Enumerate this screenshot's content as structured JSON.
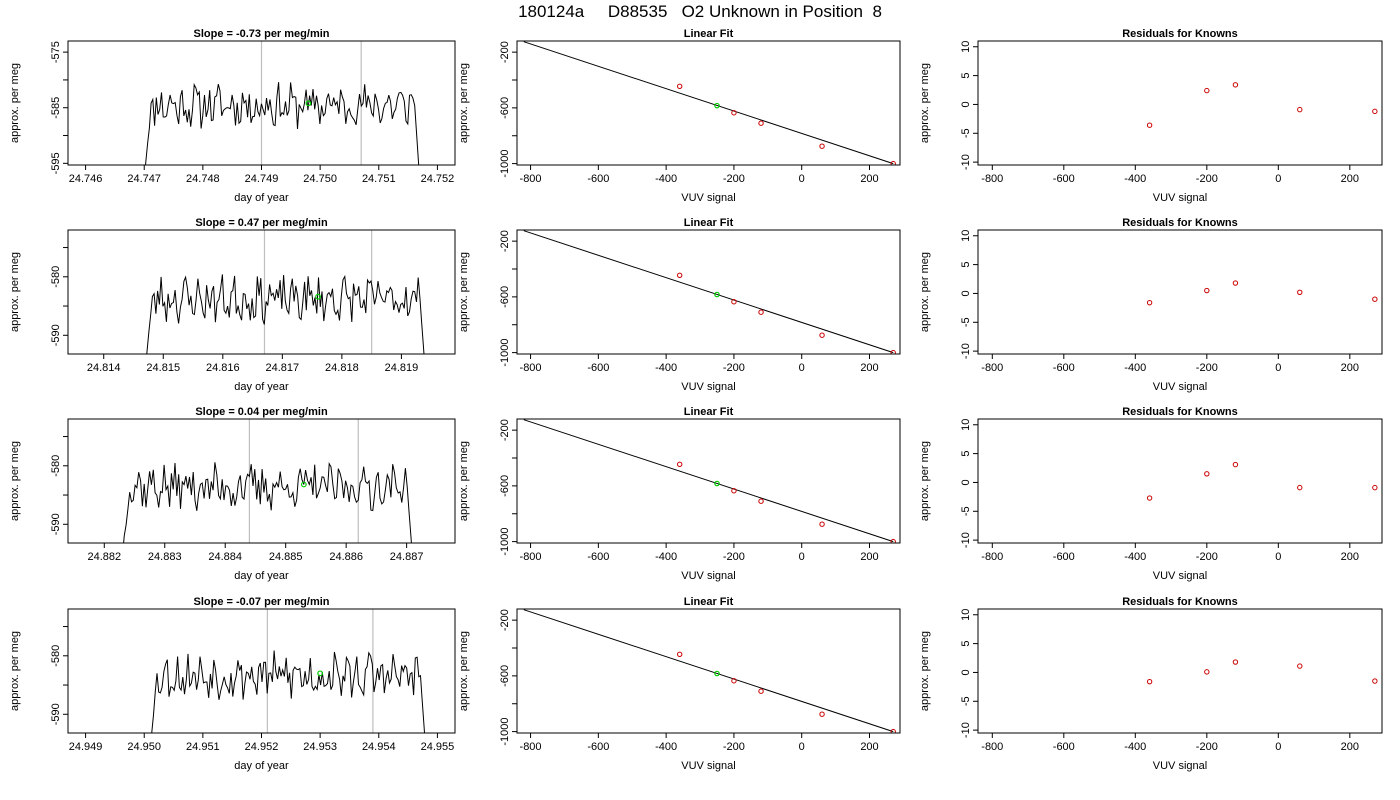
{
  "header": {
    "title": "180124a     D88535   O2 Unknown in Position  8"
  },
  "colors": {
    "trace": "#000000",
    "marker_vline": "#bebebe",
    "highlight": "#00cc00",
    "residual_points": "#cc0000",
    "axes": "#000000"
  },
  "chart_data": [
    {
      "type": "line",
      "title": "Slope =  -0.73  per meg/min",
      "xlabel": "day of year",
      "ylabel": "approx. per meg",
      "xlim": [
        24.7457,
        24.7523
      ],
      "ylim": [
        -595.3,
        -573.0
      ],
      "xticks": [
        24.746,
        24.747,
        24.748,
        24.749,
        24.75,
        24.751,
        24.752
      ],
      "xtick_labels": [
        "24.746",
        "24.747",
        "24.748",
        "24.749",
        "24.750",
        "24.751",
        "24.752"
      ],
      "yticks": [
        -575,
        -585,
        -595
      ],
      "ytick_labels": [
        "-575",
        "-585",
        "-595"
      ],
      "yminor": [
        -580,
        -590
      ],
      "x_start": 24.747,
      "x_end": 24.7517,
      "base_level": -584.6,
      "vlines": [
        24.749,
        24.7507
      ],
      "highlight": {
        "x": 24.7498,
        "y": -584.2
      },
      "seed": 11
    },
    {
      "type": "scatter",
      "title": "Linear Fit",
      "xlabel": "VUV signal",
      "ylabel": "approx. per meg",
      "xlim": [
        -840,
        290
      ],
      "ylim": [
        -1010,
        -120
      ],
      "xticks": [
        -800,
        -600,
        -400,
        -200,
        0,
        200
      ],
      "xtick_labels": [
        "-800",
        "-600",
        "-400",
        "-200",
        "0",
        "200"
      ],
      "yticks": [
        -200,
        -600,
        -1000
      ],
      "ytick_labels": [
        "-200",
        "-600",
        "-1000"
      ],
      "yminor": [
        -400,
        -800
      ],
      "fit_line": {
        "x": [
          -820,
          270
        ],
        "y": [
          -125,
          -1000
        ]
      },
      "points": {
        "x": [
          -360,
          -200,
          -120,
          60,
          270
        ],
        "y": [
          -445,
          -635,
          -710,
          -875,
          -1000
        ]
      },
      "highlight": {
        "x": -250,
        "y": -584
      }
    },
    {
      "type": "scatter",
      "title": "Residuals for Knowns",
      "xlabel": "VUV signal",
      "ylabel": "approx. per meg",
      "xlim": [
        -840,
        290
      ],
      "ylim": [
        -10.5,
        11.0
      ],
      "xticks": [
        -800,
        -600,
        -400,
        -200,
        0,
        200
      ],
      "xtick_labels": [
        "-800",
        "-600",
        "-400",
        "-200",
        "0",
        "200"
      ],
      "yticks": [
        10,
        5,
        0,
        -5,
        -10
      ],
      "ytick_labels": [
        "10",
        "5",
        "0",
        "-5",
        "-10"
      ],
      "points": {
        "x": [
          -360,
          -200,
          -120,
          60,
          270
        ],
        "y": [
          -3.6,
          2.4,
          3.4,
          -0.9,
          -1.2
        ]
      }
    },
    {
      "type": "line",
      "title": "Slope =  0.47  per meg/min",
      "xlabel": "day of year",
      "ylabel": "approx. per meg",
      "xlim": [
        24.8134,
        24.8199
      ],
      "ylim": [
        -593.2,
        -572.0
      ],
      "xticks": [
        24.814,
        24.815,
        24.816,
        24.817,
        24.818,
        24.819
      ],
      "xtick_labels": [
        "24.814",
        "24.815",
        "24.816",
        "24.817",
        "24.818",
        "24.819"
      ],
      "yticks": [
        -580,
        -590
      ],
      "ytick_labels": [
        "-580",
        "-590"
      ],
      "yminor": [
        -575,
        -585
      ],
      "x_start": 24.8147,
      "x_end": 24.8194,
      "base_level": -583.8,
      "vlines": [
        24.8167,
        24.8185
      ],
      "highlight": {
        "x": 24.8176,
        "y": -583.4
      },
      "seed": 23
    },
    {
      "type": "scatter",
      "title": "Linear Fit",
      "xlabel": "VUV signal",
      "ylabel": "approx. per meg",
      "xlim": [
        -840,
        290
      ],
      "ylim": [
        -1010,
        -120
      ],
      "xticks": [
        -800,
        -600,
        -400,
        -200,
        0,
        200
      ],
      "xtick_labels": [
        "-800",
        "-600",
        "-400",
        "-200",
        "0",
        "200"
      ],
      "yticks": [
        -200,
        -600,
        -1000
      ],
      "ytick_labels": [
        "-200",
        "-600",
        "-1000"
      ],
      "yminor": [
        -400,
        -800
      ],
      "fit_line": {
        "x": [
          -820,
          270
        ],
        "y": [
          -125,
          -1000
        ]
      },
      "points": {
        "x": [
          -360,
          -200,
          -120,
          60,
          270
        ],
        "y": [
          -445,
          -635,
          -710,
          -875,
          -1000
        ]
      },
      "highlight": {
        "x": -250,
        "y": -583
      }
    },
    {
      "type": "scatter",
      "title": "Residuals for Knowns",
      "xlabel": "VUV signal",
      "ylabel": "approx. per meg",
      "xlim": [
        -840,
        290
      ],
      "ylim": [
        -10.5,
        11.0
      ],
      "xticks": [
        -800,
        -600,
        -400,
        -200,
        0,
        200
      ],
      "xtick_labels": [
        "-800",
        "-600",
        "-400",
        "-200",
        "0",
        "200"
      ],
      "yticks": [
        10,
        5,
        0,
        -5,
        -10
      ],
      "ytick_labels": [
        "10",
        "5",
        "0",
        "-5",
        "-10"
      ],
      "points": {
        "x": [
          -360,
          -200,
          -120,
          60,
          270
        ],
        "y": [
          -1.6,
          0.5,
          1.8,
          0.2,
          -1.0
        ]
      }
    },
    {
      "type": "line",
      "title": "Slope =  0.04  per meg/min",
      "xlabel": "day of year",
      "ylabel": "approx. per meg",
      "xlim": [
        24.8814,
        24.8878
      ],
      "ylim": [
        -593.2,
        -572.0
      ],
      "xticks": [
        24.882,
        24.883,
        24.884,
        24.885,
        24.886,
        24.887
      ],
      "xtick_labels": [
        "24.882",
        "24.883",
        "24.884",
        "24.885",
        "24.886",
        "24.887"
      ],
      "yticks": [
        -580,
        -590
      ],
      "ytick_labels": [
        "-580",
        "-590"
      ],
      "yminor": [
        -575,
        -585
      ],
      "x_start": 24.8823,
      "x_end": 24.8871,
      "base_level": -583.6,
      "vlines": [
        24.8844,
        24.8862
      ],
      "highlight": {
        "x": 24.8853,
        "y": -583.2
      },
      "seed": 37
    },
    {
      "type": "scatter",
      "title": "Linear Fit",
      "xlabel": "VUV signal",
      "ylabel": "approx. per meg",
      "xlim": [
        -840,
        290
      ],
      "ylim": [
        -1010,
        -120
      ],
      "xticks": [
        -800,
        -600,
        -400,
        -200,
        0,
        200
      ],
      "xtick_labels": [
        "-800",
        "-600",
        "-400",
        "-200",
        "0",
        "200"
      ],
      "yticks": [
        -200,
        -600,
        -1000
      ],
      "ytick_labels": [
        "-200",
        "-600",
        "-1000"
      ],
      "yminor": [
        -400,
        -800
      ],
      "fit_line": {
        "x": [
          -820,
          270
        ],
        "y": [
          -125,
          -1000
        ]
      },
      "points": {
        "x": [
          -360,
          -200,
          -120,
          60,
          270
        ],
        "y": [
          -445,
          -635,
          -710,
          -875,
          -1000
        ]
      },
      "highlight": {
        "x": -250,
        "y": -583
      }
    },
    {
      "type": "scatter",
      "title": "Residuals for Knowns",
      "xlabel": "VUV signal",
      "ylabel": "approx. per meg",
      "xlim": [
        -840,
        290
      ],
      "ylim": [
        -10.5,
        11.0
      ],
      "xticks": [
        -800,
        -600,
        -400,
        -200,
        0,
        200
      ],
      "xtick_labels": [
        "-800",
        "-600",
        "-400",
        "-200",
        "0",
        "200"
      ],
      "yticks": [
        10,
        5,
        0,
        -5,
        -10
      ],
      "ytick_labels": [
        "10",
        "5",
        "0",
        "-5",
        "-10"
      ],
      "points": {
        "x": [
          -360,
          -200,
          -120,
          60,
          270
        ],
        "y": [
          -2.7,
          1.5,
          3.1,
          -0.9,
          -0.9
        ]
      }
    },
    {
      "type": "line",
      "title": "Slope =  -0.07  per meg/min",
      "xlabel": "day of year",
      "ylabel": "approx. per meg",
      "xlim": [
        24.9487,
        24.9553
      ],
      "ylim": [
        -593.2,
        -572.0
      ],
      "xticks": [
        24.949,
        24.95,
        24.951,
        24.952,
        24.953,
        24.954,
        24.955
      ],
      "xtick_labels": [
        "24.949",
        "24.950",
        "24.951",
        "24.952",
        "24.953",
        "24.954",
        "24.955"
      ],
      "yticks": [
        -580,
        -590
      ],
      "ytick_labels": [
        "-580",
        "-590"
      ],
      "yminor": [
        -575,
        -585
      ],
      "x_start": 24.9501,
      "x_end": 24.9548,
      "base_level": -583.4,
      "vlines": [
        24.9521,
        24.9539
      ],
      "highlight": {
        "x": 24.953,
        "y": -583.0
      },
      "seed": 53
    },
    {
      "type": "scatter",
      "title": "Linear Fit",
      "xlabel": "VUV signal",
      "ylabel": "approx. per meg",
      "xlim": [
        -840,
        290
      ],
      "ylim": [
        -1010,
        -120
      ],
      "xticks": [
        -800,
        -600,
        -400,
        -200,
        0,
        200
      ],
      "xtick_labels": [
        "-800",
        "-600",
        "-400",
        "-200",
        "0",
        "200"
      ],
      "yticks": [
        -200,
        -600,
        -1000
      ],
      "ytick_labels": [
        "-200",
        "-600",
        "-1000"
      ],
      "yminor": [
        -400,
        -800
      ],
      "fit_line": {
        "x": [
          -820,
          270
        ],
        "y": [
          -125,
          -1000
        ]
      },
      "points": {
        "x": [
          -360,
          -200,
          -120,
          60,
          270
        ],
        "y": [
          -445,
          -635,
          -710,
          -875,
          -1000
        ]
      },
      "highlight": {
        "x": -250,
        "y": -583
      }
    },
    {
      "type": "scatter",
      "title": "Residuals for Knowns",
      "xlabel": "VUV signal",
      "ylabel": "approx. per meg",
      "xlim": [
        -840,
        290
      ],
      "ylim": [
        -10.5,
        11.0
      ],
      "xticks": [
        -800,
        -600,
        -400,
        -200,
        0,
        200
      ],
      "xtick_labels": [
        "-800",
        "-600",
        "-400",
        "-200",
        "0",
        "200"
      ],
      "yticks": [
        10,
        5,
        0,
        -5,
        -10
      ],
      "ytick_labels": [
        "10",
        "5",
        "0",
        "-5",
        "-10"
      ],
      "points": {
        "x": [
          -360,
          -200,
          -120,
          60,
          270
        ],
        "y": [
          -1.6,
          0.1,
          1.8,
          1.1,
          -1.5
        ]
      }
    }
  ]
}
